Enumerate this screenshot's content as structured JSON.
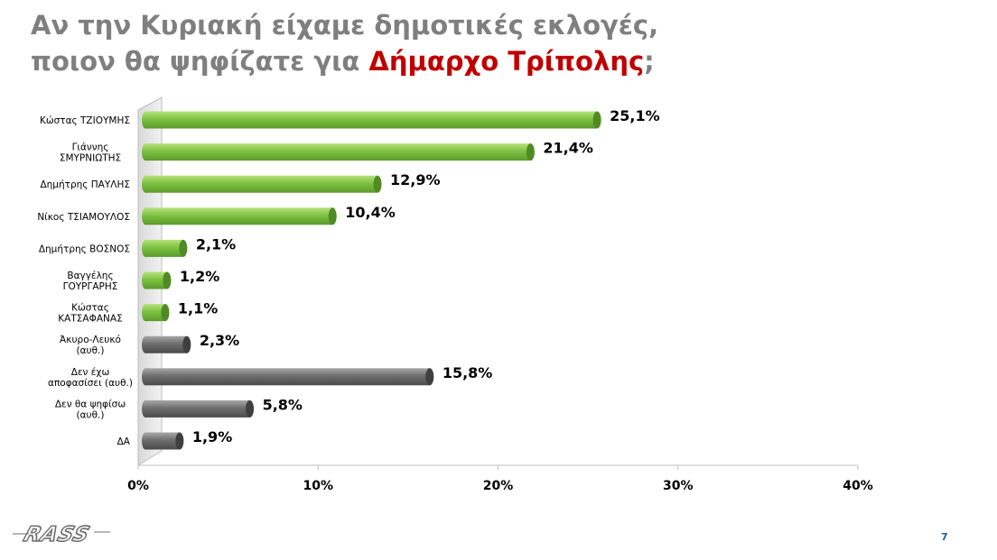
{
  "title": {
    "line1": "Αν την Κυριακή είχαμε δημοτικές εκλογές,",
    "line2_prefix": "ποιον θα ψηφίζατε για ",
    "line2_highlight": "Δήμαρχο Τρίπολης",
    "line2_suffix": ";"
  },
  "page_number": "7",
  "logo": {
    "text": "RASS",
    "icon": "rass-logo"
  },
  "colors": {
    "candidate": "#7dc242",
    "candidate_dark": "#4f8a23",
    "other": "#6e6e6e",
    "other_dark": "#3f3f3f",
    "title": "#7f7f7f",
    "accent": "#c00000"
  },
  "chart_data": {
    "type": "bar",
    "orientation": "horizontal",
    "title": "",
    "xlabel": "",
    "ylabel": "",
    "xlim": [
      0,
      40
    ],
    "ticks": [
      "0%",
      "10%",
      "20%",
      "30%",
      "40%"
    ],
    "tick_values": [
      0,
      10,
      20,
      30,
      40
    ],
    "categories": [
      [
        "Κώστας ΤΖΙΟΥΜΗΣ"
      ],
      [
        "Γιάννης",
        "ΣΜΥΡΝΙΩΤΗΣ"
      ],
      [
        "Δημήτρης ΠΑΥΛΗΣ"
      ],
      [
        "Νίκος ΤΣΙΑΜΟΥΛΟΣ"
      ],
      [
        "Δημήτρης ΒΟΣΝΟΣ"
      ],
      [
        "Βαγγέλης",
        "ΓΟΥΡΓΑΡΗΣ"
      ],
      [
        "Κώστας",
        "ΚΑΤΣΑΦΑΝΑΣ"
      ],
      [
        "Άκυρο-Λευκό",
        "(αυθ.)"
      ],
      [
        "Δεν έχω",
        "αποφασίσει (αυθ.)"
      ],
      [
        "Δεν θα ψηφίσω",
        "(αυθ.)"
      ],
      [
        "ΔΑ"
      ]
    ],
    "values": [
      25.1,
      21.4,
      12.9,
      10.4,
      2.1,
      1.2,
      1.1,
      2.3,
      15.8,
      5.8,
      1.9
    ],
    "value_labels": [
      "25,1%",
      "21,4%",
      "12,9%",
      "10,4%",
      "2,1%",
      "1,2%",
      "1,1%",
      "2,3%",
      "15,8%",
      "5,8%",
      "1,9%"
    ],
    "groups": [
      "candidate",
      "candidate",
      "candidate",
      "candidate",
      "candidate",
      "candidate",
      "candidate",
      "other",
      "other",
      "other",
      "other"
    ],
    "grid": false,
    "legend": "none"
  }
}
